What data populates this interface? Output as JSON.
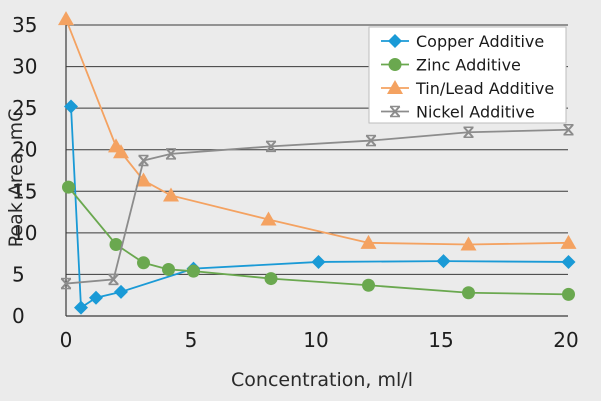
{
  "chart_data": {
    "type": "line",
    "xlabel": "Concentration, ml/l",
    "ylabel": "Peak Area, mC",
    "xlim": [
      0,
      20
    ],
    "ylim": [
      0,
      35
    ],
    "xticks": [
      0,
      5,
      10,
      15,
      20
    ],
    "yticks": [
      0,
      5,
      10,
      15,
      20,
      25,
      30,
      35
    ],
    "grid": "horizontal",
    "legend_position": "top-right",
    "series": [
      {
        "name": "Copper Additive",
        "marker": "diamond",
        "color": "#1a9ad6",
        "points": [
          [
            0.2,
            25.2
          ],
          [
            0.6,
            1.0
          ],
          [
            1.2,
            2.2
          ],
          [
            2.2,
            2.9
          ],
          [
            5.1,
            5.7
          ],
          [
            10.1,
            6.5
          ],
          [
            15.1,
            6.6
          ],
          [
            20.1,
            6.5
          ]
        ]
      },
      {
        "name": "Zinc Additive",
        "marker": "circle",
        "color": "#6aa84f",
        "points": [
          [
            0.1,
            15.5
          ],
          [
            2.0,
            8.6
          ],
          [
            3.1,
            6.4
          ],
          [
            4.1,
            5.6
          ],
          [
            5.1,
            5.4
          ],
          [
            8.2,
            4.5
          ],
          [
            12.1,
            3.7
          ],
          [
            16.1,
            2.8
          ],
          [
            20.1,
            2.6
          ]
        ]
      },
      {
        "name": "Tin/Lead Additive",
        "marker": "triangle",
        "color": "#f4a261",
        "points": [
          [
            0.0,
            35.7
          ],
          [
            2.0,
            20.4
          ],
          [
            2.2,
            19.7
          ],
          [
            3.1,
            16.3
          ],
          [
            4.2,
            14.5
          ],
          [
            8.1,
            11.6
          ],
          [
            12.1,
            8.8
          ],
          [
            16.1,
            8.6
          ],
          [
            20.1,
            8.8
          ]
        ]
      },
      {
        "name": "Nickel Additive",
        "marker": "x-bar",
        "color": "#8c8c8c",
        "points": [
          [
            0.0,
            3.9
          ],
          [
            1.9,
            4.4
          ],
          [
            3.1,
            18.7
          ],
          [
            4.2,
            19.5
          ],
          [
            8.2,
            20.4
          ],
          [
            12.2,
            21.1
          ],
          [
            16.1,
            22.1
          ],
          [
            20.1,
            22.4
          ]
        ]
      }
    ]
  }
}
